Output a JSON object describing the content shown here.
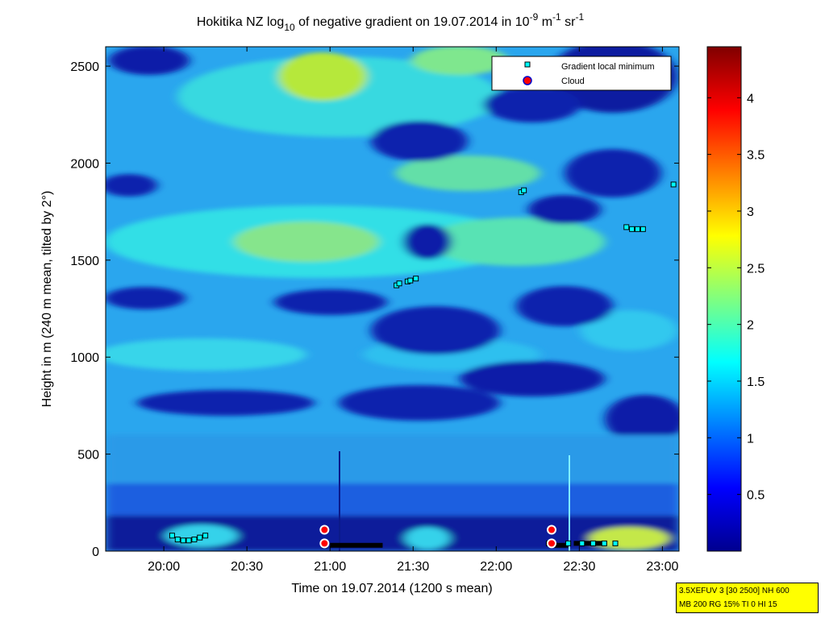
{
  "chart_data": {
    "type": "heatmap",
    "title": {
      "prefix": "Hokitika NZ log",
      "log_base": "10",
      "middle": " of negative gradient on 19.07.2014 in 10",
      "exp1": "-9",
      "unit1": " m",
      "exp2": "-1",
      "unit2": " sr",
      "exp3": "-1"
    },
    "xlabel": "Time on 19.07.2014 (1200 s mean)",
    "ylabel": "Height in m (240 m mean, tilted by 2°)",
    "xlim": [
      "19:39",
      "23:06"
    ],
    "ylim": [
      0,
      2600
    ],
    "x_ticks": [
      "20:00",
      "20:30",
      "21:00",
      "21:30",
      "22:00",
      "22:30",
      "23:00"
    ],
    "y_ticks": [
      "0",
      "500",
      "1000",
      "1500",
      "2000",
      "2500"
    ],
    "colorbar": {
      "colormap": "jet",
      "range": [
        0,
        4.45
      ],
      "ticks": [
        "0.5",
        "1",
        "1.5",
        "2",
        "2.5",
        "3",
        "3.5",
        "4"
      ]
    },
    "legend": {
      "placement": "top-right",
      "entries": [
        {
          "label": "Gradient local minimum",
          "marker": "square",
          "color": "#00ffff"
        },
        {
          "label": "Cloud",
          "marker": "circle",
          "color": "#ff0000"
        }
      ]
    },
    "gradient_local_minima": [
      {
        "time": "20:03",
        "height": 80
      },
      {
        "time": "20:05",
        "height": 60
      },
      {
        "time": "20:07",
        "height": 55
      },
      {
        "time": "20:09",
        "height": 55
      },
      {
        "time": "20:11",
        "height": 60
      },
      {
        "time": "20:13",
        "height": 70
      },
      {
        "time": "20:15",
        "height": 80
      },
      {
        "time": "20:58",
        "height": 30
      },
      {
        "time": "21:24",
        "height": 1370
      },
      {
        "time": "21:25",
        "height": 1380
      },
      {
        "time": "21:28",
        "height": 1390
      },
      {
        "time": "21:29",
        "height": 1395
      },
      {
        "time": "21:31",
        "height": 1405
      },
      {
        "time": "22:09",
        "height": 1850
      },
      {
        "time": "22:10",
        "height": 1860
      },
      {
        "time": "22:19",
        "height": 40
      },
      {
        "time": "22:26",
        "height": 40
      },
      {
        "time": "22:31",
        "height": 40
      },
      {
        "time": "22:35",
        "height": 40
      },
      {
        "time": "22:39",
        "height": 40
      },
      {
        "time": "22:43",
        "height": 40
      },
      {
        "time": "22:47",
        "height": 1670
      },
      {
        "time": "22:49",
        "height": 1660
      },
      {
        "time": "22:51",
        "height": 1660
      },
      {
        "time": "22:53",
        "height": 1660
      },
      {
        "time": "23:04",
        "height": 1890
      }
    ],
    "clouds": [
      {
        "time": "20:58",
        "height": 110
      },
      {
        "time": "20:58",
        "height": 40
      },
      {
        "time": "22:20",
        "height": 110
      },
      {
        "time": "22:20",
        "height": 40
      }
    ],
    "bottom_bars": [
      {
        "start": "21:00",
        "end": "21:19",
        "height": 30
      },
      {
        "start": "22:20",
        "end": "22:26",
        "height": 30
      },
      {
        "start": "22:28",
        "end": "22:40",
        "height": 40
      }
    ]
  },
  "param_box": {
    "line1": "3.5XEFUV 3 [30 2500] NH 600",
    "line2": "MB 200 RG 15% TI 0 HI 15"
  }
}
